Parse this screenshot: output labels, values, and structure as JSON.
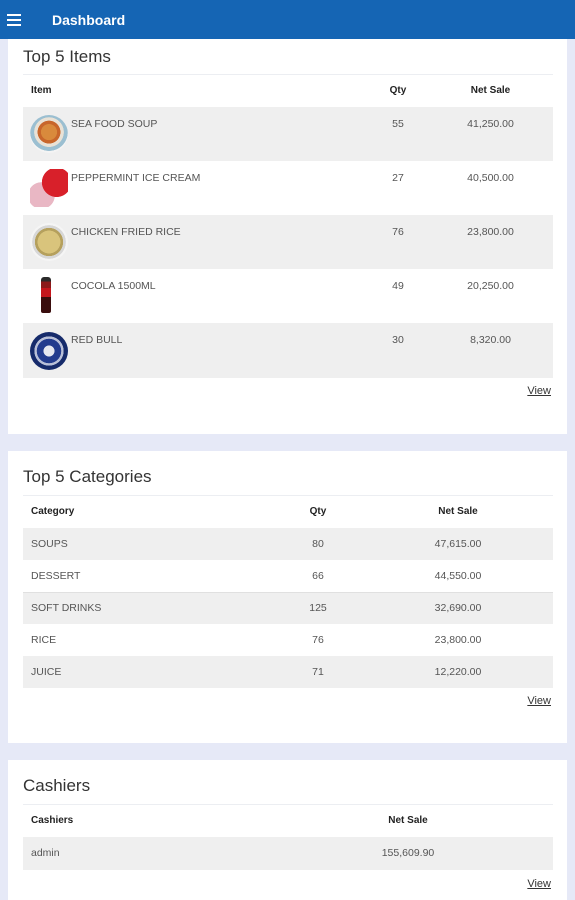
{
  "app": {
    "title": "Dashboard"
  },
  "top_items": {
    "title": "Top 5 Items",
    "columns": {
      "item": "Item",
      "qty": "Qty",
      "net_sale": "Net Sale"
    },
    "rows": [
      {
        "name": "SEA FOOD SOUP",
        "qty": "55",
        "net_sale": "41,250.00",
        "icon": "soup-bowl-thumbnail"
      },
      {
        "name": "PEPPERMINT ICE CREAM",
        "qty": "27",
        "net_sale": "40,500.00",
        "icon": "ice-cream-thumbnail"
      },
      {
        "name": "CHICKEN FRIED RICE",
        "qty": "76",
        "net_sale": "23,800.00",
        "icon": "fried-rice-thumbnail"
      },
      {
        "name": "COCOLA 1500ML",
        "qty": "49",
        "net_sale": "20,250.00",
        "icon": "cola-bottle-thumbnail"
      },
      {
        "name": "RED BULL",
        "qty": "30",
        "net_sale": "8,320.00",
        "icon": "red-bull-can-thumbnail"
      }
    ],
    "view_label": "View"
  },
  "top_categories": {
    "title": "Top 5 Categories",
    "columns": {
      "category": "Category",
      "qty": "Qty",
      "net_sale": "Net Sale"
    },
    "rows": [
      {
        "name": "SOUPS",
        "qty": "80",
        "net_sale": "47,615.00"
      },
      {
        "name": "DESSERT",
        "qty": "66",
        "net_sale": "44,550.00"
      },
      {
        "name": "SOFT DRINKS",
        "qty": "125",
        "net_sale": "32,690.00"
      },
      {
        "name": "RICE",
        "qty": "76",
        "net_sale": "23,800.00"
      },
      {
        "name": "JUICE",
        "qty": "71",
        "net_sale": "12,220.00"
      }
    ],
    "view_label": "View"
  },
  "cashiers": {
    "title": "Cashiers",
    "columns": {
      "cashier": "Cashiers",
      "net_sale": "Net Sale"
    },
    "rows": [
      {
        "name": "admin",
        "net_sale": "155,609.90"
      }
    ],
    "view_label": "View"
  },
  "colors": {
    "header": "#1565b4",
    "background": "#e6e9f7",
    "stripe": "#efefef"
  }
}
